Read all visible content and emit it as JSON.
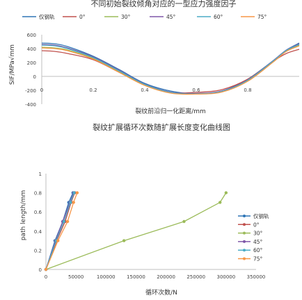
{
  "chart_data": [
    {
      "type": "line",
      "title": "不同初始裂纹倾角对应的一型应力强度因子",
      "xlabel": "裂纹前沿归一化距离/mm",
      "ylabel": "SIF/MPa√mm",
      "xlim": [
        0,
        1
      ],
      "ylim": [
        -400,
        600
      ],
      "x_ticks": [
        "0",
        "0.2",
        "0.4",
        "0.6",
        "0.8"
      ],
      "x_tick_values": [
        0,
        0.2,
        0.4,
        0.6,
        0.8
      ],
      "y_ticks": [
        "600",
        "400",
        "200",
        "0",
        "-200",
        "-400"
      ],
      "y_tick_values": [
        600,
        400,
        200,
        0,
        -200,
        -400
      ],
      "legend_position": "top",
      "series": [
        {
          "name": "仅钢轨",
          "color": "#2e75b6",
          "x": [
            0,
            0.05,
            0.1,
            0.2,
            0.3,
            0.4,
            0.5,
            0.6,
            0.7,
            0.8,
            0.9,
            0.95,
            1.0
          ],
          "y": [
            480,
            470,
            430,
            290,
            100,
            -100,
            -210,
            -250,
            -210,
            -40,
            230,
            380,
            480
          ]
        },
        {
          "name": "0°",
          "color": "#c0504d",
          "x": [
            0,
            0.05,
            0.1,
            0.2,
            0.3,
            0.4,
            0.5,
            0.6,
            0.7,
            0.8,
            0.9,
            0.95,
            1.0
          ],
          "y": [
            370,
            360,
            330,
            240,
            60,
            -120,
            -230,
            -230,
            -190,
            -40,
            220,
            330,
            390
          ]
        },
        {
          "name": "30°",
          "color": "#9bbb59",
          "x": [
            0,
            0.05,
            0.1,
            0.2,
            0.3,
            0.4,
            0.5,
            0.6,
            0.7,
            0.8,
            0.9,
            0.95,
            1.0
          ],
          "y": [
            420,
            410,
            380,
            260,
            70,
            -120,
            -230,
            -250,
            -220,
            -60,
            220,
            370,
            450
          ]
        },
        {
          "name": "45°",
          "color": "#7e57a8",
          "x": [
            0,
            0.05,
            0.1,
            0.2,
            0.3,
            0.4,
            0.5,
            0.6,
            0.7,
            0.8,
            0.9,
            0.95,
            1.0
          ],
          "y": [
            460,
            450,
            410,
            280,
            90,
            -110,
            -225,
            -245,
            -210,
            -50,
            230,
            380,
            470
          ]
        },
        {
          "name": "60°",
          "color": "#4bacc6",
          "x": [
            0,
            0.05,
            0.1,
            0.2,
            0.3,
            0.4,
            0.5,
            0.6,
            0.7,
            0.8,
            0.9,
            0.95,
            1.0
          ],
          "y": [
            450,
            440,
            400,
            270,
            80,
            -115,
            -230,
            -250,
            -215,
            -55,
            225,
            375,
            460
          ]
        },
        {
          "name": "75°",
          "color": "#f79646",
          "x": [
            0,
            0.05,
            0.1,
            0.2,
            0.3,
            0.4,
            0.5,
            0.6,
            0.7,
            0.8,
            0.9,
            0.95,
            1.0
          ],
          "y": [
            410,
            400,
            370,
            250,
            60,
            -130,
            -240,
            -255,
            -225,
            -70,
            210,
            360,
            440
          ]
        }
      ]
    },
    {
      "type": "line",
      "title": "裂纹扩展循环次数随扩展长度变化曲线图",
      "xlabel": "循环次数/N",
      "ylabel": "path length/mm",
      "xlim": [
        0,
        350000
      ],
      "ylim": [
        0,
        1
      ],
      "x_ticks": [
        "0",
        "50000",
        "100000",
        "150000",
        "200000",
        "250000",
        "300000",
        "350000"
      ],
      "x_tick_values": [
        0,
        50000,
        100000,
        150000,
        200000,
        250000,
        300000,
        350000
      ],
      "y_ticks": [
        "1",
        "0.8",
        "0.6",
        "0.4",
        "0.2",
        "0"
      ],
      "y_tick_values": [
        1,
        0.8,
        0.6,
        0.4,
        0.2,
        0
      ],
      "legend_position": "right",
      "series": [
        {
          "name": "仅钢轨",
          "color": "#2e75b6",
          "x": [
            0,
            15000,
            28000,
            38000,
            45000
          ],
          "y": [
            0,
            0.3,
            0.5,
            0.7,
            0.8
          ]
        },
        {
          "name": "0°",
          "color": "#c0504d",
          "x": [
            0,
            18000,
            32000,
            42000,
            48000
          ],
          "y": [
            0,
            0.3,
            0.5,
            0.7,
            0.8
          ]
        },
        {
          "name": "30°",
          "color": "#9bbb59",
          "x": [
            0,
            130000,
            230000,
            290000,
            300000
          ],
          "y": [
            0,
            0.3,
            0.5,
            0.7,
            0.8
          ]
        },
        {
          "name": "45°",
          "color": "#7e57a8",
          "x": [
            0,
            16000,
            28000,
            40000,
            46000
          ],
          "y": [
            0,
            0.3,
            0.5,
            0.7,
            0.8
          ]
        },
        {
          "name": "60°",
          "color": "#4bacc6",
          "x": [
            0,
            17000,
            30000,
            41000,
            47000
          ],
          "y": [
            0,
            0.3,
            0.5,
            0.7,
            0.8
          ]
        },
        {
          "name": "75°",
          "color": "#f79646",
          "x": [
            0,
            20000,
            36000,
            46000,
            52000
          ],
          "y": [
            0,
            0.3,
            0.5,
            0.7,
            0.8
          ]
        }
      ]
    }
  ]
}
